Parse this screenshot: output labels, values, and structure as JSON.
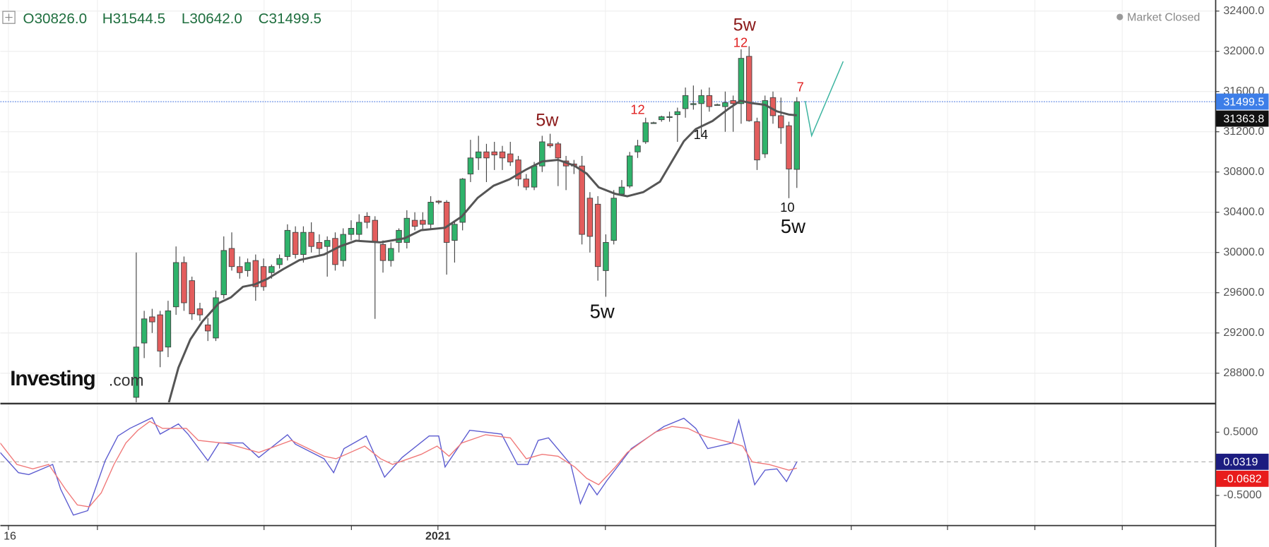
{
  "chart_data": [
    {
      "type": "candlestick",
      "header": [
        "O30826.0",
        "H31544.5",
        "L30642.0",
        "C31499.5"
      ],
      "status": "Market Closed",
      "logo": [
        "Investing",
        ".com"
      ],
      "x_labels": [
        "16",
        "2021"
      ],
      "up_color": "#2fb36b",
      "down_color": "#e35d5d",
      "open": [
        28560,
        29100,
        29360,
        29380,
        29060,
        29460,
        29900,
        29720,
        29440,
        29280,
        29150,
        29580,
        30040,
        29860,
        29820,
        29920,
        29860,
        29800,
        29880,
        29960,
        30200,
        29980,
        30200,
        30100,
        30060,
        30140,
        29920,
        30180,
        30180,
        30360,
        30320,
        30080,
        29920,
        30100,
        30100,
        30320,
        30320,
        30280,
        30510,
        30500,
        30120,
        30300,
        30780,
        30940,
        31000,
        31000,
        31000,
        30980,
        30920,
        30730,
        30650,
        30860,
        31080,
        31080,
        30910,
        30880,
        30860,
        30540,
        30480,
        29820,
        30120,
        30580,
        30660,
        31000,
        31100,
        31290,
        31320,
        31350,
        31370,
        31430,
        31470,
        31480,
        31560,
        31470,
        31450,
        31510,
        31480,
        31950,
        31300,
        30980,
        31540,
        31360,
        31260,
        30826
      ],
      "high": [
        30000,
        29420,
        29440,
        29420,
        29520,
        30060,
        29960,
        29760,
        29500,
        29350,
        29620,
        30160,
        30200,
        29960,
        29940,
        29980,
        29940,
        29880,
        29980,
        30280,
        30260,
        30260,
        30300,
        30180,
        30160,
        30200,
        30240,
        30320,
        30380,
        30400,
        30360,
        30120,
        30100,
        30240,
        30420,
        30400,
        30400,
        30560,
        30520,
        30520,
        30320,
        30740,
        31120,
        31160,
        31080,
        31100,
        31060,
        31100,
        30960,
        30780,
        30900,
        31160,
        31180,
        31100,
        30960,
        30920,
        30960,
        30600,
        30560,
        30180,
        30620,
        30720,
        31000,
        31120,
        31340,
        31300,
        31360,
        31400,
        31440,
        31640,
        31660,
        31620,
        31640,
        31480,
        31600,
        31560,
        32020,
        32050,
        31340,
        31560,
        31600,
        31540,
        31300,
        31544.5
      ],
      "low": [
        28510,
        28950,
        29200,
        28860,
        28960,
        29380,
        29420,
        29330,
        29320,
        29120,
        29120,
        29540,
        29820,
        29740,
        29760,
        29520,
        29620,
        29740,
        29840,
        29920,
        29940,
        29900,
        30000,
        29980,
        29760,
        29820,
        29860,
        30120,
        30120,
        30240,
        29340,
        29800,
        29860,
        30000,
        30040,
        30220,
        30220,
        30240,
        30480,
        29780,
        29900,
        30220,
        30700,
        30820,
        30700,
        30820,
        30820,
        30860,
        30660,
        30620,
        30620,
        30800,
        31040,
        30660,
        30620,
        30780,
        30080,
        30000,
        29720,
        29560,
        30080,
        30560,
        30640,
        30940,
        31080,
        31280,
        31300,
        31300,
        31100,
        31340,
        31420,
        31160,
        31400,
        31460,
        31200,
        31200,
        31280,
        31300,
        30820,
        30940,
        31280,
        31080,
        30540,
        30642
      ],
      "close": [
        29060,
        29340,
        29310,
        29020,
        29420,
        29900,
        29500,
        29390,
        29380,
        29220,
        29550,
        30020,
        29860,
        29800,
        29900,
        29660,
        29660,
        29860,
        29940,
        30220,
        29980,
        30200,
        30060,
        30040,
        30120,
        29880,
        30180,
        30240,
        30300,
        30300,
        30100,
        29920,
        30040,
        30220,
        30340,
        30260,
        30280,
        30500,
        30500,
        30100,
        30280,
        30730,
        30940,
        31000,
        30940,
        30970,
        30940,
        30900,
        30730,
        30650,
        30860,
        31100,
        31060,
        30940,
        30860,
        30860,
        30180,
        30160,
        29860,
        30100,
        30540,
        30650,
        30960,
        31060,
        31290,
        31290,
        31350,
        31350,
        31400,
        31560,
        31480,
        31560,
        31450,
        31470,
        31490,
        31480,
        31930,
        31310,
        30920,
        31510,
        31360,
        31240,
        30830,
        31499.5
      ],
      "ma": {
        "color": "#555555",
        "x": [
          4.1,
          5.3,
          6.8,
          8.3,
          10.4,
          11.9,
          13.4,
          14.9,
          16.5,
          18.5,
          20.5,
          23.6,
          25.6,
          27.6,
          30.7,
          33.7,
          35.8,
          38.8,
          40.9,
          42.9,
          44.9,
          46.9,
          49,
          51,
          53,
          55,
          56.6,
          58.1,
          60.2,
          61.7,
          63.7,
          65.8,
          67.3,
          68.8,
          70.3,
          72.4,
          74.4,
          75.9,
          77.4,
          79,
          80.5,
          82,
          83
        ],
        "values": [
          28510,
          28855,
          29136,
          29313,
          29498,
          29554,
          29659,
          29683,
          29739,
          29836,
          29924,
          29980,
          30061,
          30117,
          30101,
          30141,
          30222,
          30246,
          30358,
          30543,
          30664,
          30728,
          30825,
          30905,
          30921,
          30865,
          30784,
          30648,
          30583,
          30559,
          30600,
          30704,
          30905,
          31106,
          31227,
          31307,
          31428,
          31508,
          31484,
          31468,
          31403,
          31371,
          31363.8
        ]
      },
      "ylim": [
        28510,
        32510
      ],
      "yticks": [
        {
          "value": 28800,
          "label": "28800.0"
        },
        {
          "value": 29200,
          "label": "29200.0"
        },
        {
          "value": 29600,
          "label": "29600.0"
        },
        {
          "value": 30000,
          "label": "30000.0"
        },
        {
          "value": 30400,
          "label": "30400.0"
        },
        {
          "value": 30800,
          "label": "30800.0"
        },
        {
          "value": 31200,
          "label": "31200.0"
        },
        {
          "value": 31600,
          "label": "31600.0"
        },
        {
          "value": 32000,
          "label": "32000.0"
        },
        {
          "value": 32400,
          "label": "32400.0"
        }
      ],
      "grid": true,
      "annotations": [
        {
          "text": "5w",
          "color": "#8b1a1a"
        },
        {
          "text": "12",
          "color": "#e02020"
        },
        {
          "text": "5w",
          "color": "#8b1a1a"
        },
        {
          "text": "12",
          "color": "#e02020"
        },
        {
          "text": "14",
          "color": "#111111"
        },
        {
          "text": "7",
          "color": "#e02020"
        },
        {
          "text": "10",
          "color": "#111111"
        },
        {
          "text": "5w",
          "color": "#111111"
        },
        {
          "text": "5w",
          "color": "#111111"
        }
      ]
    },
    {
      "type": "line",
      "series": [
        {
          "color": "#5b5bd0",
          "x": [
            -17.1,
            -14.8,
            -13.5,
            -10.5,
            -9.5,
            -7.9,
            -6.1,
            -3.9,
            -2.3,
            -0.8,
            2.0,
            3.0,
            5.3,
            6.5,
            9.0,
            10.4,
            13.4,
            15.4,
            19.0,
            20.0,
            23.6,
            24.8,
            26.1,
            28.9,
            31.2,
            33.4,
            36.8,
            38.0,
            38.8,
            41.9,
            45.9,
            47.9,
            49.2,
            50.5,
            51.8,
            54.6,
            55.8,
            56.9,
            57.9,
            59.1,
            62.2,
            66.3,
            68.8,
            70.3,
            71.8,
            74.9,
            75.7,
            76.6,
            77.7,
            79.0,
            80.5,
            81.7,
            83
          ],
          "values": [
            0.18,
            -0.14,
            -0.17,
            -0.01,
            -0.4,
            -0.81,
            -0.74,
            0.05,
            0.44,
            0.56,
            0.73,
            0.47,
            0.63,
            0.47,
            0.05,
            0.33,
            0.33,
            0.1,
            0.46,
            0.31,
            0.08,
            -0.14,
            0.24,
            0.44,
            -0.21,
            0.1,
            0.44,
            0.44,
            -0.05,
            0.53,
            0.47,
            -0.01,
            -0.01,
            0.37,
            0.41,
            -0.01,
            -0.63,
            -0.31,
            -0.49,
            -0.27,
            0.24,
            0.59,
            0.72,
            0.56,
            0.24,
            0.33,
            0.69,
            0.24,
            -0.33,
            -0.1,
            -0.08,
            -0.28,
            0.0319
          ]
        },
        {
          "color": "#f07878",
          "x": [
            -17.1,
            -15.0,
            -13.0,
            -11.0,
            -8.9,
            -7.4,
            -5.9,
            -4.4,
            -2.8,
            -1.3,
            0.2,
            1.7,
            3.3,
            6.3,
            7.8,
            11.4,
            15.4,
            19.5,
            23.6,
            25.1,
            28.7,
            30.7,
            32.2,
            35.8,
            37.8,
            39.3,
            40.9,
            43.9,
            47.0,
            49.0,
            51.0,
            53.0,
            55.1,
            56.6,
            58.1,
            60.2,
            61.7,
            65.2,
            67.3,
            69.3,
            71.3,
            74.9,
            76.2,
            77.4,
            79.5,
            82.0,
            83
          ],
          "values": [
            0.33,
            -0.01,
            -0.08,
            -0.01,
            -0.4,
            -0.65,
            -0.68,
            -0.46,
            -0.01,
            0.33,
            0.53,
            0.67,
            0.56,
            0.56,
            0.37,
            0.32,
            0.18,
            0.37,
            0.12,
            0.08,
            0.28,
            0.08,
            -0.01,
            0.15,
            0.28,
            0.12,
            0.33,
            0.46,
            0.41,
            0.08,
            0.15,
            0.12,
            -0.05,
            -0.23,
            -0.33,
            -0.05,
            0.18,
            0.5,
            0.59,
            0.56,
            0.44,
            0.33,
            0.28,
            0.03,
            -0.01,
            -0.1,
            -0.0682
          ]
        }
      ],
      "ylim": [
        -0.97,
        0.92
      ],
      "yticks": [
        {
          "value": 0.5,
          "label": "0.5000"
        },
        {
          "value": -0.5,
          "label": "-0.5000"
        }
      ]
    }
  ]
}
